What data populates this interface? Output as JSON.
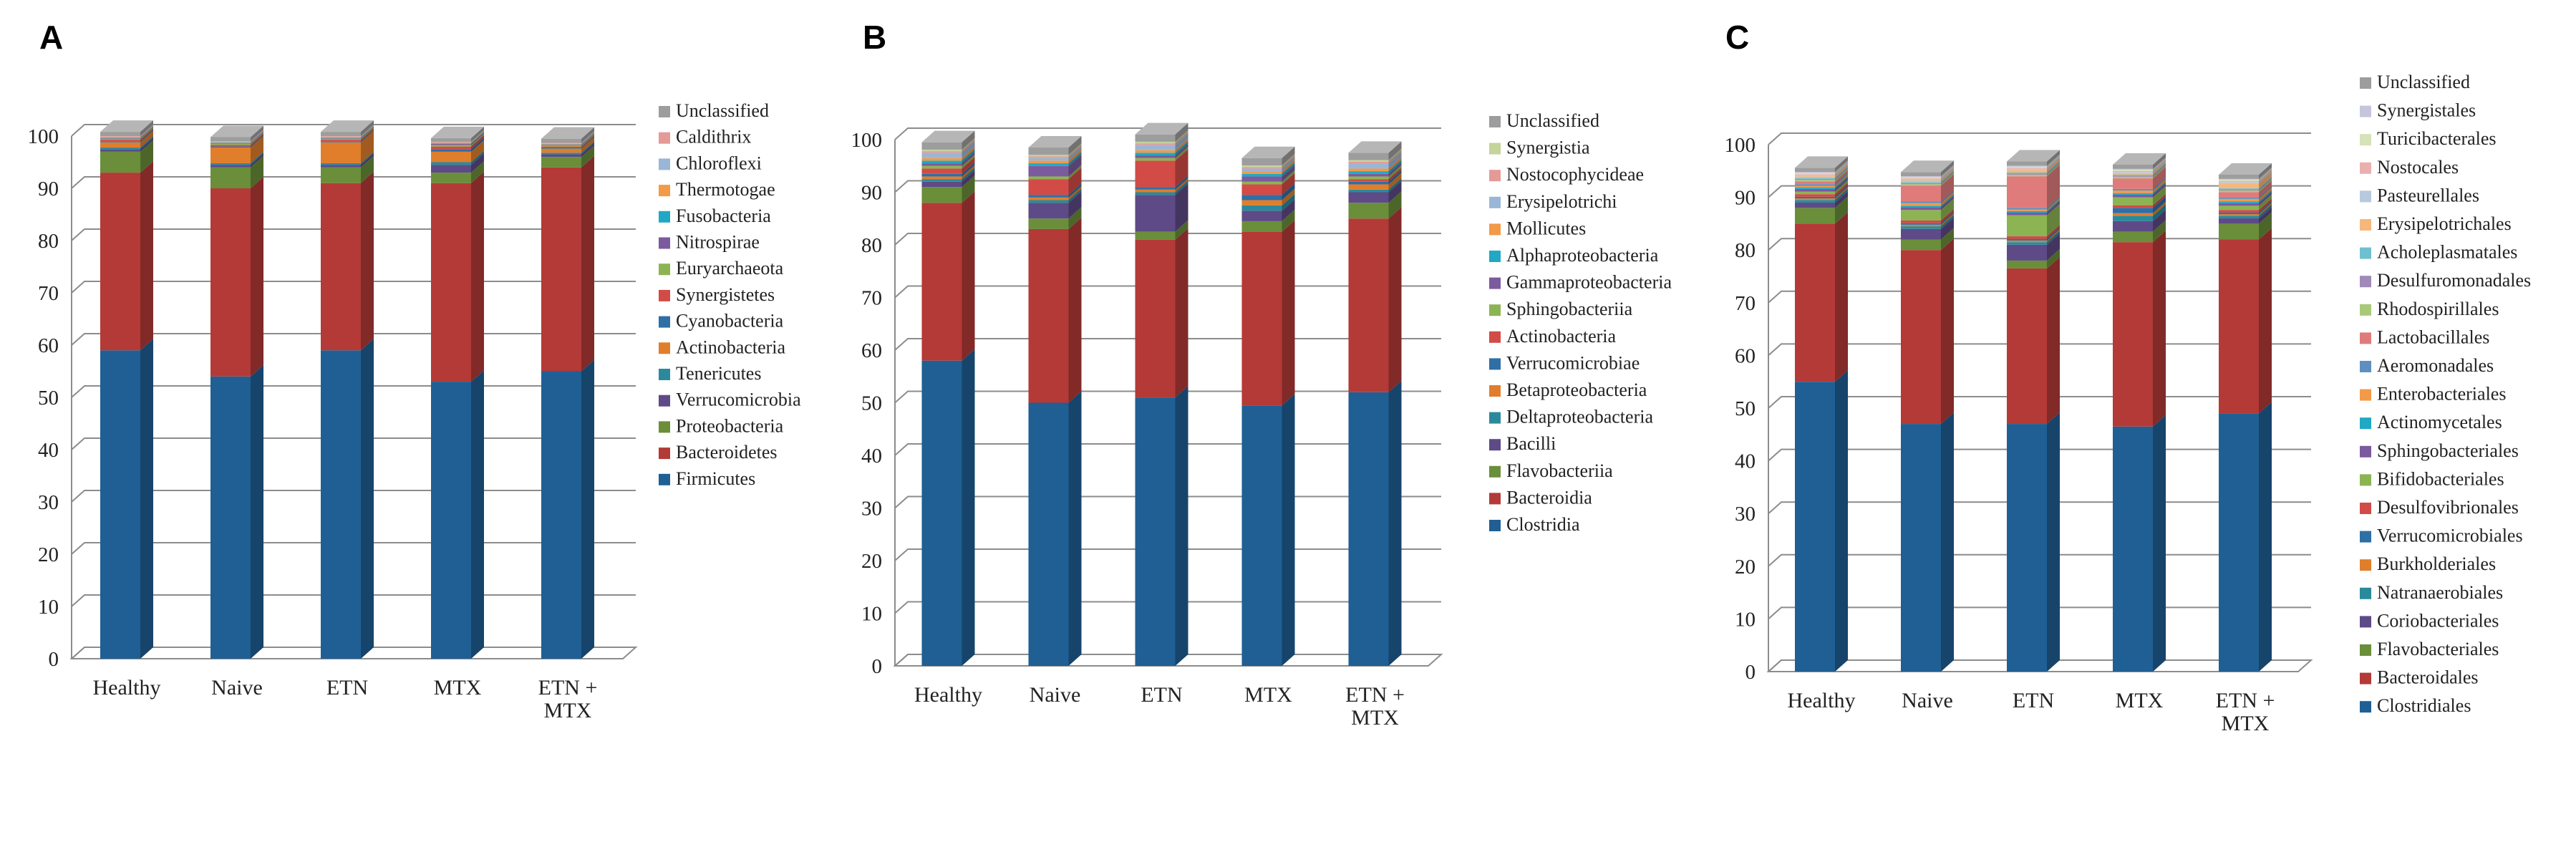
{
  "chart_data": [
    {
      "panel": "A",
      "type": "bar",
      "stacked": true,
      "categories": [
        "Healthy",
        "Naive",
        "ETN",
        "MTX",
        "ETN + MTX"
      ],
      "category_lines": [
        [
          "Healthy"
        ],
        [
          "Naive"
        ],
        [
          "ETN"
        ],
        [
          "MTX"
        ],
        [
          "ETN +",
          "MTX"
        ]
      ],
      "ylim": [
        0,
        100
      ],
      "yticks": [
        0,
        10,
        20,
        30,
        40,
        50,
        60,
        70,
        80,
        90,
        100
      ],
      "legend_position": "right",
      "series": [
        {
          "name": "Firmicutes",
          "color": "#1f5f94",
          "values": [
            59,
            54,
            59,
            53,
            55
          ]
        },
        {
          "name": "Bacteroidetes",
          "color": "#b33a37",
          "values": [
            34,
            36,
            32,
            38,
            39
          ]
        },
        {
          "name": "Proteobacteria",
          "color": "#6a8e3a",
          "values": [
            4,
            4,
            3,
            2,
            2
          ]
        },
        {
          "name": "Verrucomicrobia",
          "color": "#5e4a86",
          "values": [
            0.5,
            0.5,
            0.5,
            1.5,
            0.5
          ]
        },
        {
          "name": "Tenericutes",
          "color": "#2a8a9c",
          "values": [
            0.3,
            0.3,
            0.3,
            0.5,
            0.3
          ]
        },
        {
          "name": "Actinobacteria",
          "color": "#e07e2c",
          "values": [
            1,
            3,
            4,
            2,
            0.8
          ]
        },
        {
          "name": "Cyanobacteria",
          "color": "#2e6fa6",
          "values": [
            0.2,
            0.2,
            0.2,
            0.5,
            0.2
          ]
        },
        {
          "name": "Synergistetes",
          "color": "#d24b46",
          "values": [
            0.3,
            0.3,
            0.3,
            0.5,
            0.2
          ]
        },
        {
          "name": "Euryarchaeota",
          "color": "#8cb452",
          "values": [
            0.2,
            0.2,
            0.2,
            0.3,
            0.2
          ]
        },
        {
          "name": "Nitrospirae",
          "color": "#7c5a9e",
          "values": [
            0.1,
            0.1,
            0.1,
            0.2,
            0.1
          ]
        },
        {
          "name": "Fusobacteria",
          "color": "#20a8c4",
          "values": [
            0.1,
            0.1,
            0.1,
            0.1,
            0.1
          ]
        },
        {
          "name": "Thermotogae",
          "color": "#f29a48",
          "values": [
            0.1,
            0.1,
            0.1,
            0.1,
            0.1
          ]
        },
        {
          "name": "Chloroflexi",
          "color": "#9ab6d6",
          "values": [
            0.1,
            0.1,
            0.1,
            0.1,
            0.1
          ]
        },
        {
          "name": "Caldithrix",
          "color": "#e59a98",
          "values": [
            0.1,
            0.1,
            0.1,
            0.1,
            0.1
          ]
        },
        {
          "name": "Unclassified",
          "color": "#9d9d9d",
          "values": [
            0.8,
            0.8,
            0.8,
            0.7,
            0.8
          ]
        }
      ]
    },
    {
      "panel": "B",
      "type": "bar",
      "stacked": true,
      "categories": [
        "Healthy",
        "Naive",
        "ETN",
        "MTX",
        "ETN + MTX"
      ],
      "category_lines": [
        [
          "Healthy"
        ],
        [
          "Naive"
        ],
        [
          "ETN"
        ],
        [
          "MTX"
        ],
        [
          "ETN +",
          "MTX"
        ]
      ],
      "ylim": [
        0,
        100
      ],
      "yticks": [
        0,
        10,
        20,
        30,
        40,
        50,
        60,
        70,
        80,
        90,
        100
      ],
      "legend_position": "right",
      "series": [
        {
          "name": "Clostridia",
          "color": "#1f5f94",
          "values": [
            58,
            50,
            51,
            49.5,
            52
          ]
        },
        {
          "name": "Bacteroidia",
          "color": "#b33a37",
          "values": [
            30,
            33,
            30,
            33,
            33
          ]
        },
        {
          "name": "Flavobacteriia",
          "color": "#6a8e3a",
          "values": [
            3,
            2,
            1.5,
            2,
            3
          ]
        },
        {
          "name": "Bacilli",
          "color": "#5e4a86",
          "values": [
            1,
            3,
            7,
            2,
            2
          ]
        },
        {
          "name": "Deltaproteobacteria",
          "color": "#2a8a9c",
          "values": [
            0.5,
            0.5,
            0.5,
            1,
            0.5
          ]
        },
        {
          "name": "Betaproteobacteria",
          "color": "#e07e2c",
          "values": [
            0.5,
            0.5,
            0.5,
            1,
            1
          ]
        },
        {
          "name": "Verrucomicrobiae",
          "color": "#2e6fa6",
          "values": [
            0.5,
            0.5,
            0.5,
            1,
            0.5
          ]
        },
        {
          "name": "Actinobacteria",
          "color": "#d24b46",
          "values": [
            1,
            3,
            5,
            2,
            0.5
          ]
        },
        {
          "name": "Sphingobacteriia",
          "color": "#8cb452",
          "values": [
            0.5,
            0.5,
            0.5,
            0.5,
            0.5
          ]
        },
        {
          "name": "Gammaproteobacteria",
          "color": "#7c5a9e",
          "values": [
            0.5,
            2,
            0.5,
            1,
            0.5
          ]
        },
        {
          "name": "Alphaproteobacteria",
          "color": "#20a8c4",
          "values": [
            0.5,
            0.5,
            0.5,
            0.5,
            0.5
          ]
        },
        {
          "name": "Mollicutes",
          "color": "#f29a48",
          "values": [
            0.5,
            0.5,
            0.5,
            0.5,
            0.5
          ]
        },
        {
          "name": "Erysipelotrichi",
          "color": "#9ab6d6",
          "values": [
            1,
            0.5,
            1,
            0.5,
            1
          ]
        },
        {
          "name": "Nostocophycideae",
          "color": "#e59a98",
          "values": [
            0.3,
            0.3,
            0.3,
            0.3,
            0.3
          ]
        },
        {
          "name": "Synergistia",
          "color": "#c4d49a",
          "values": [
            0.3,
            0.3,
            0.3,
            0.3,
            0.3
          ]
        },
        {
          "name": "Unclassified",
          "color": "#9d9d9d",
          "values": [
            1.4,
            1.4,
            1.4,
            1.4,
            1.4
          ]
        }
      ]
    },
    {
      "panel": "C",
      "type": "bar",
      "stacked": true,
      "categories": [
        "Healthy",
        "Naive",
        "ETN",
        "MTX",
        "ETN + MTX"
      ],
      "category_lines": [
        [
          "Healthy"
        ],
        [
          "Naive"
        ],
        [
          "ETN"
        ],
        [
          "MTX"
        ],
        [
          "ETN +",
          "MTX"
        ]
      ],
      "ylim": [
        0,
        100
      ],
      "yticks": [
        0,
        10,
        20,
        30,
        40,
        50,
        60,
        70,
        80,
        90,
        100
      ],
      "legend_position": "right",
      "series": [
        {
          "name": "Clostridiales",
          "color": "#1f5f94",
          "values": [
            55,
            47,
            47,
            46.5,
            49
          ]
        },
        {
          "name": "Bacteroidales",
          "color": "#b33a37",
          "values": [
            30,
            33,
            29.5,
            35,
            33
          ]
        },
        {
          "name": "Flavobacteriales",
          "color": "#6a8e3a",
          "values": [
            3,
            2,
            1.5,
            2,
            3
          ]
        },
        {
          "name": "Coriobacteriales",
          "color": "#5e4a86",
          "values": [
            1,
            2,
            3,
            2,
            1
          ]
        },
        {
          "name": "Natranaerobiales",
          "color": "#2a8a9c",
          "values": [
            0.5,
            0.5,
            0.5,
            1,
            0.5
          ]
        },
        {
          "name": "Burkholderiales",
          "color": "#e07e2c",
          "values": [
            0.3,
            0.3,
            0.3,
            0.5,
            0.3
          ]
        },
        {
          "name": "Verrucomicrobiales",
          "color": "#2e6fa6",
          "values": [
            0.3,
            0.3,
            0.3,
            1,
            0.3
          ]
        },
        {
          "name": "Desulfovibrionales",
          "color": "#d24b46",
          "values": [
            0.5,
            0.5,
            0.5,
            0.5,
            0.5
          ]
        },
        {
          "name": "Bifidobacteriales",
          "color": "#8cb452",
          "values": [
            0.5,
            2,
            4,
            1.5,
            0.8
          ]
        },
        {
          "name": "Sphingobacteriales",
          "color": "#7c5a9e",
          "values": [
            0.5,
            0.5,
            0.5,
            0.5,
            0.5
          ]
        },
        {
          "name": "Actinomycetales",
          "color": "#20a8c4",
          "values": [
            0.3,
            0.3,
            0.3,
            0.3,
            0.3
          ]
        },
        {
          "name": "Enterobacteriales",
          "color": "#f29a48",
          "values": [
            0.3,
            0.5,
            0.3,
            0.5,
            0.5
          ]
        },
        {
          "name": "Aeromonadales",
          "color": "#5e8fc0",
          "values": [
            0.3,
            0.3,
            0.3,
            0.3,
            0.3
          ]
        },
        {
          "name": "Lactobacillales",
          "color": "#e07b7b",
          "values": [
            0.5,
            3,
            6,
            2,
            1
          ]
        },
        {
          "name": "Rhodospirillales",
          "color": "#a9c97a",
          "values": [
            0.3,
            0.3,
            0.3,
            0.3,
            0.3
          ]
        },
        {
          "name": "Desulfuromonadales",
          "color": "#a08ab8",
          "values": [
            0.2,
            0.2,
            0.2,
            0.2,
            0.2
          ]
        },
        {
          "name": "Acholeplasmatales",
          "color": "#6fbfd0",
          "values": [
            0.2,
            0.2,
            0.2,
            0.2,
            0.2
          ]
        },
        {
          "name": "Erysipelotrichales",
          "color": "#f7b77a",
          "values": [
            0.3,
            0.3,
            0.5,
            0.3,
            1
          ]
        },
        {
          "name": "Pasteurellales",
          "color": "#b8c9dd",
          "values": [
            0.2,
            0.2,
            0.2,
            0.2,
            0.2
          ]
        },
        {
          "name": "Nostocales",
          "color": "#eab0ae",
          "values": [
            0.2,
            0.2,
            0.2,
            0.2,
            0.2
          ]
        },
        {
          "name": "Turicibacterales",
          "color": "#d6e2b8",
          "values": [
            0.2,
            0.2,
            0.2,
            0.2,
            0.2
          ]
        },
        {
          "name": "Synergistales",
          "color": "#c5c5dc",
          "values": [
            0.2,
            0.2,
            0.2,
            0.2,
            0.2
          ]
        },
        {
          "name": "Unclassified",
          "color": "#9d9d9d",
          "values": [
            0.8,
            0.8,
            0.8,
            0.8,
            0.8
          ]
        }
      ]
    }
  ]
}
